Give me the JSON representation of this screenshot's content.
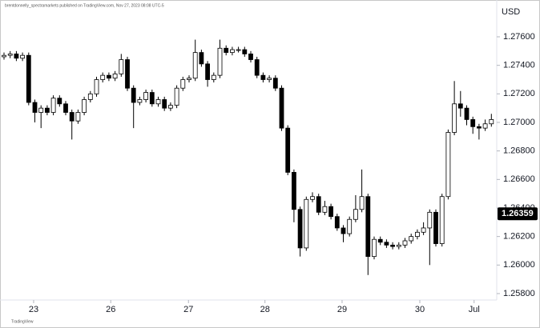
{
  "chart_data": {
    "type": "candlestick",
    "caption": "brentdonnelly_spectramarkets published on TradingView.com, Nov 27, 2023 08:08 UTC-5",
    "currency": "USD",
    "brand": "TradingView",
    "up_color": "#ffffff",
    "down_color": "#000000",
    "outline_color": "#000000",
    "grid": false,
    "x": [
      0,
      1,
      2,
      3,
      4,
      5,
      6,
      7,
      8,
      9,
      10,
      11,
      12,
      13,
      14,
      15,
      16,
      17,
      18,
      19,
      20,
      21,
      22,
      23,
      24,
      25,
      26,
      27,
      28,
      29,
      30,
      31,
      32,
      33,
      34,
      35,
      36,
      37,
      38,
      39,
      40,
      41,
      42,
      43,
      44,
      45,
      46,
      47,
      48,
      49,
      50,
      51,
      52,
      53,
      54,
      55,
      56,
      57,
      58,
      59,
      60,
      61,
      62,
      63,
      64,
      65,
      66,
      67,
      68,
      69,
      70,
      71,
      72,
      73,
      74,
      75,
      76,
      77,
      78,
      79
    ],
    "open": [
      1.2746,
      1.2747,
      1.2748,
      1.2745,
      1.2747,
      1.2714,
      1.2707,
      1.271,
      1.2707,
      1.2717,
      1.2713,
      1.2707,
      1.2701,
      1.2707,
      1.2716,
      1.272,
      1.273,
      1.2733,
      1.2731,
      1.2734,
      1.2744,
      1.2724,
      1.2714,
      1.2716,
      1.2721,
      1.2713,
      1.2716,
      1.271,
      1.2712,
      1.2724,
      1.273,
      1.2731,
      1.2749,
      1.2741,
      1.273,
      1.2733,
      1.2752,
      1.2749,
      1.2751,
      1.2751,
      1.2748,
      1.2744,
      1.2733,
      1.273,
      1.2731,
      1.2724,
      1.2696,
      1.2665,
      1.2639,
      1.2612,
      1.2646,
      1.2648,
      1.2637,
      1.2641,
      1.2634,
      1.2626,
      1.2622,
      1.2632,
      1.2639,
      1.2648,
      1.2606,
      1.2618,
      1.2616,
      1.2614,
      1.2613,
      1.2614,
      1.2617,
      1.262,
      1.2623,
      1.2626,
      1.2637,
      1.2615,
      1.2648,
      1.2693,
      1.2713,
      1.271,
      1.2702,
      1.2697,
      1.2696,
      1.2699
    ],
    "high": [
      1.2749,
      1.275,
      1.275,
      1.2749,
      1.2749,
      1.2716,
      1.2712,
      1.2712,
      1.2719,
      1.2719,
      1.2715,
      1.2709,
      1.2709,
      1.2718,
      1.2722,
      1.2732,
      1.2735,
      1.2735,
      1.2736,
      1.2748,
      1.2746,
      1.2726,
      1.2718,
      1.2723,
      1.2723,
      1.2718,
      1.2718,
      1.2714,
      1.2726,
      1.2732,
      1.2733,
      1.2758,
      1.2751,
      1.2743,
      1.2735,
      1.2758,
      1.2754,
      1.2753,
      1.2753,
      1.2753,
      1.275,
      1.2746,
      1.2735,
      1.2733,
      1.2733,
      1.2726,
      1.2698,
      1.2667,
      1.2641,
      1.2648,
      1.2651,
      1.265,
      1.2645,
      1.2643,
      1.2636,
      1.2628,
      1.2634,
      1.2649,
      1.2667,
      1.265,
      1.262,
      1.262,
      1.2618,
      1.2616,
      1.2616,
      1.2619,
      1.2622,
      1.2625,
      1.263,
      1.2639,
      1.2639,
      1.265,
      1.2695,
      1.2729,
      1.2722,
      1.2712,
      1.2704,
      1.2699,
      1.2702,
      1.2706
    ],
    "low": [
      1.2744,
      1.2745,
      1.2743,
      1.2743,
      1.2712,
      1.27,
      1.2696,
      1.2705,
      1.2705,
      1.2711,
      1.2705,
      1.2688,
      1.2699,
      1.2705,
      1.2714,
      1.2718,
      1.2728,
      1.2729,
      1.2729,
      1.2732,
      1.2722,
      1.2696,
      1.2712,
      1.2714,
      1.2711,
      1.2711,
      1.2708,
      1.2708,
      1.271,
      1.2722,
      1.2728,
      1.2729,
      1.2739,
      1.2725,
      1.2728,
      1.2731,
      1.2747,
      1.2747,
      1.2749,
      1.2746,
      1.2742,
      1.2731,
      1.2728,
      1.2728,
      1.2722,
      1.2694,
      1.2663,
      1.263,
      1.2606,
      1.261,
      1.2644,
      1.2635,
      1.2635,
      1.2632,
      1.2624,
      1.2616,
      1.262,
      1.263,
      1.2637,
      1.2593,
      1.2604,
      1.2614,
      1.2612,
      1.2611,
      1.2611,
      1.2612,
      1.2615,
      1.2618,
      1.2621,
      1.26,
      1.2613,
      1.2613,
      1.2646,
      1.2691,
      1.2704,
      1.2698,
      1.2692,
      1.2688,
      1.2694,
      1.2697
    ],
    "close": [
      1.2747,
      1.2748,
      1.2745,
      1.2747,
      1.2714,
      1.2707,
      1.271,
      1.2707,
      1.2717,
      1.2713,
      1.2707,
      1.2701,
      1.2707,
      1.2716,
      1.272,
      1.273,
      1.2733,
      1.2731,
      1.2734,
      1.2744,
      1.2724,
      1.2714,
      1.2716,
      1.2721,
      1.2713,
      1.2716,
      1.271,
      1.2712,
      1.2724,
      1.273,
      1.2731,
      1.2749,
      1.2741,
      1.273,
      1.2733,
      1.2752,
      1.2749,
      1.2751,
      1.2751,
      1.2748,
      1.2744,
      1.2733,
      1.273,
      1.2731,
      1.2724,
      1.2696,
      1.2665,
      1.2639,
      1.2612,
      1.2646,
      1.2648,
      1.2637,
      1.2641,
      1.2634,
      1.2626,
      1.2622,
      1.2632,
      1.2639,
      1.2648,
      1.2606,
      1.2618,
      1.2616,
      1.2614,
      1.2613,
      1.2614,
      1.2617,
      1.262,
      1.2623,
      1.2626,
      1.2637,
      1.2615,
      1.2648,
      1.2693,
      1.2713,
      1.271,
      1.2702,
      1.2697,
      1.2696,
      1.2699,
      1.2702
    ],
    "xlim": [
      -0.65,
      79.87
    ],
    "xticks": [
      {
        "value": 4.8,
        "label": "23"
      },
      {
        "value": 17.3,
        "label": "26"
      },
      {
        "value": 29.9,
        "label": "27"
      },
      {
        "value": 42.3,
        "label": "28"
      },
      {
        "value": 54.8,
        "label": "29"
      },
      {
        "value": 67.4,
        "label": "30"
      },
      {
        "value": 76.2,
        "label": "Jul"
      }
    ],
    "ylim": [
      1.25755,
      1.27858
    ],
    "yticks": [
      {
        "value": 1.258,
        "label": "1.25800"
      },
      {
        "value": 1.26,
        "label": "1.26000"
      },
      {
        "value": 1.262,
        "label": "1.26200"
      },
      {
        "value": 1.264,
        "label": "1.26400"
      },
      {
        "value": 1.266,
        "label": "1.26600"
      },
      {
        "value": 1.268,
        "label": "1.26800"
      },
      {
        "value": 1.27,
        "label": "1.27000"
      },
      {
        "value": 1.272,
        "label": "1.27200"
      },
      {
        "value": 1.274,
        "label": "1.27400"
      },
      {
        "value": 1.276,
        "label": "1.27600"
      }
    ],
    "last_price": {
      "value": 1.26359,
      "label": "1.26359"
    }
  }
}
